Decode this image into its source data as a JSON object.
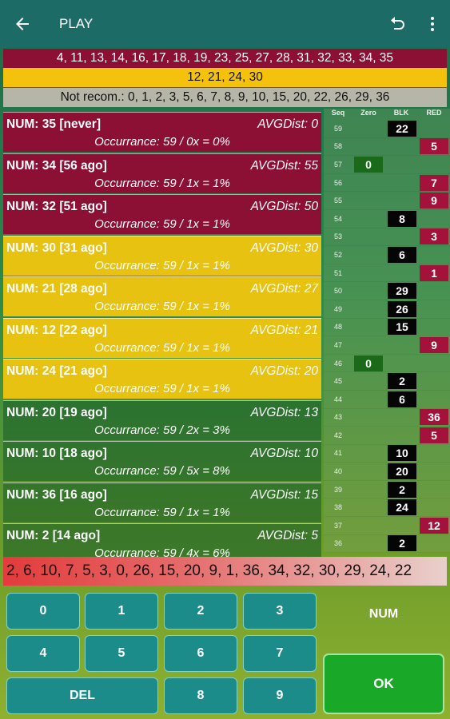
{
  "appbar": {
    "title": "PLAY",
    "back_icon": "arrow-left-icon",
    "undo_icon": "undo-icon",
    "menu_icon": "more-vert-icon"
  },
  "bands": {
    "red": "4, 11, 13, 14, 16, 17, 18, 19, 23, 25, 27, 28, 31, 32, 33, 34, 35",
    "yellow": "12, 21, 24, 30",
    "grey": "Not recom.: 0, 1, 2, 3, 5, 6, 7, 8, 9, 10, 15, 20, 22, 26, 29, 36"
  },
  "numbers": [
    {
      "num": "NUM: 35 [never]",
      "avg": "AVGDist: 0",
      "occ": "Occurrance: 59 / 0x = 0%"
    },
    {
      "num": "NUM: 34 [56 ago]",
      "avg": "AVGDist: 55",
      "occ": "Occurrance: 59 / 1x = 1%"
    },
    {
      "num": "NUM: 32 [51 ago]",
      "avg": "AVGDist: 50",
      "occ": "Occurrance: 59 / 1x = 1%"
    },
    {
      "num": "NUM: 30 [31 ago]",
      "avg": "AVGDist: 30",
      "occ": "Occurrance: 59 / 1x = 1%"
    },
    {
      "num": "NUM: 21 [28 ago]",
      "avg": "AVGDist: 27",
      "occ": "Occurrance: 59 / 1x = 1%"
    },
    {
      "num": "NUM: 12 [22 ago]",
      "avg": "AVGDist: 21",
      "occ": "Occurrance: 59 / 1x = 1%"
    },
    {
      "num": "NUM: 24 [21 ago]",
      "avg": "AVGDist: 20",
      "occ": "Occurrance: 59 / 1x = 1%"
    },
    {
      "num": "NUM: 20 [19 ago]",
      "avg": "AVGDist: 13",
      "occ": "Occurrance: 59 / 2x = 3%"
    },
    {
      "num": "NUM: 10 [18 ago]",
      "avg": "AVGDist: 10",
      "occ": "Occurrance: 59 / 5x = 8%"
    },
    {
      "num": "NUM: 36 [16 ago]",
      "avg": "AVGDist: 15",
      "occ": "Occurrance: 59 / 1x = 1%"
    },
    {
      "num": "NUM: 2 [14 ago]",
      "avg": "AVGDist: 5",
      "occ": "Occurrance: 59 / 4x = 6%"
    }
  ],
  "history": {
    "headers": {
      "seq": "Seq",
      "zero": "Zero",
      "blk": "BLK",
      "red": "RED"
    },
    "rows": [
      {
        "seq": "59",
        "zero": "",
        "blk": "22",
        "red": ""
      },
      {
        "seq": "58",
        "zero": "",
        "blk": "",
        "red": "5"
      },
      {
        "seq": "57",
        "zero": "0",
        "blk": "",
        "red": ""
      },
      {
        "seq": "56",
        "zero": "",
        "blk": "",
        "red": "7"
      },
      {
        "seq": "55",
        "zero": "",
        "blk": "",
        "red": "9"
      },
      {
        "seq": "54",
        "zero": "",
        "blk": "8",
        "red": ""
      },
      {
        "seq": "53",
        "zero": "",
        "blk": "",
        "red": "3"
      },
      {
        "seq": "52",
        "zero": "",
        "blk": "6",
        "red": ""
      },
      {
        "seq": "51",
        "zero": "",
        "blk": "",
        "red": "1"
      },
      {
        "seq": "50",
        "zero": "",
        "blk": "29",
        "red": ""
      },
      {
        "seq": "49",
        "zero": "",
        "blk": "26",
        "red": ""
      },
      {
        "seq": "48",
        "zero": "",
        "blk": "15",
        "red": ""
      },
      {
        "seq": "47",
        "zero": "",
        "blk": "",
        "red": "9"
      },
      {
        "seq": "46",
        "zero": "0",
        "blk": "",
        "red": ""
      },
      {
        "seq": "45",
        "zero": "",
        "blk": "2",
        "red": ""
      },
      {
        "seq": "44",
        "zero": "",
        "blk": "6",
        "red": ""
      },
      {
        "seq": "43",
        "zero": "",
        "blk": "",
        "red": "36"
      },
      {
        "seq": "42",
        "zero": "",
        "blk": "",
        "red": "5"
      },
      {
        "seq": "41",
        "zero": "",
        "blk": "10",
        "red": ""
      },
      {
        "seq": "40",
        "zero": "",
        "blk": "20",
        "red": ""
      },
      {
        "seq": "39",
        "zero": "",
        "blk": "2",
        "red": ""
      },
      {
        "seq": "38",
        "zero": "",
        "blk": "24",
        "red": ""
      },
      {
        "seq": "37",
        "zero": "",
        "blk": "",
        "red": "12"
      },
      {
        "seq": "36",
        "zero": "",
        "blk": "2",
        "red": ""
      }
    ]
  },
  "sequence": "2, 6, 10, 7, 5, 3, 0, 26, 15, 20, 9, 1, 36, 34, 32, 30, 29, 24, 22",
  "keypad": {
    "k0": "0",
    "k1": "1",
    "k2": "2",
    "k3": "3",
    "k4": "4",
    "k5": "5",
    "k6": "6",
    "k7": "7",
    "del": "DEL",
    "k8": "8",
    "k9": "9",
    "num_label": "NUM",
    "ok": "OK"
  }
}
